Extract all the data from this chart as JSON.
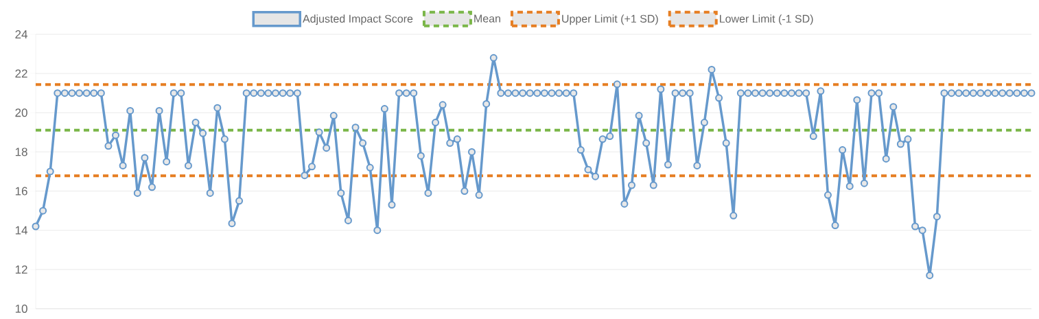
{
  "chart_data": {
    "type": "line",
    "categories": [
      null,
      null,
      null,
      null,
      null,
      null,
      null,
      null,
      null,
      null,
      null,
      null,
      null,
      null,
      null,
      null,
      null,
      null,
      null,
      null,
      null,
      null,
      null,
      null,
      null,
      null,
      null,
      null,
      null,
      null,
      null,
      null,
      null,
      null,
      null,
      null,
      null,
      null,
      null,
      null,
      null,
      null,
      null,
      null,
      null,
      null,
      null,
      null,
      null,
      null,
      null,
      null,
      null,
      null,
      null,
      null,
      null,
      null,
      null,
      null,
      null,
      null,
      null,
      null,
      null,
      null,
      null,
      null,
      null,
      null,
      null,
      null,
      null,
      null,
      null,
      null,
      null,
      null,
      null,
      null,
      null,
      null,
      null,
      null,
      null,
      null,
      null,
      null,
      null,
      null,
      null,
      null,
      null,
      null,
      null,
      null,
      null,
      null,
      null,
      null,
      null,
      null,
      null,
      null,
      null,
      null,
      null,
      null,
      null,
      null,
      null,
      null,
      null,
      null,
      null,
      null,
      null,
      null,
      null,
      null,
      null,
      null,
      null,
      null,
      null,
      null,
      null,
      null,
      null,
      null,
      null,
      null,
      null,
      null,
      null,
      null,
      null,
      null
    ],
    "series": [
      {
        "name": "Adjusted Impact Score",
        "color": "#6699cc",
        "values": [
          14.2,
          15.0,
          17.0,
          21.0,
          21.0,
          21.0,
          21.0,
          21.0,
          21.0,
          21.0,
          18.3,
          18.85,
          17.3,
          20.1,
          15.9,
          17.7,
          16.2,
          20.1,
          17.5,
          21.0,
          21.0,
          17.3,
          19.5,
          18.95,
          15.9,
          20.25,
          18.65,
          14.35,
          15.5,
          21.0,
          21.0,
          21.0,
          21.0,
          21.0,
          21.0,
          21.0,
          21.0,
          16.8,
          17.25,
          19.0,
          18.2,
          19.85,
          15.9,
          14.5,
          19.25,
          18.45,
          17.2,
          14.0,
          20.2,
          15.3,
          21.0,
          21.0,
          21.0,
          17.8,
          15.9,
          19.5,
          20.4,
          18.45,
          18.65,
          16.0,
          18.0,
          15.8,
          20.45,
          22.8,
          21.0,
          21.0,
          21.0,
          21.0,
          21.0,
          21.0,
          21.0,
          21.0,
          21.0,
          21.0,
          21.0,
          18.1,
          17.1,
          16.75,
          18.65,
          18.8,
          21.45,
          15.35,
          16.3,
          19.85,
          18.45,
          16.3,
          21.2,
          17.35,
          21.0,
          21.0,
          21.0,
          17.3,
          19.5,
          22.2,
          20.75,
          18.45,
          14.75,
          21.0,
          21.0,
          21.0,
          21.0,
          21.0,
          21.0,
          21.0,
          21.0,
          21.0,
          21.0,
          18.8,
          21.1,
          15.8,
          14.25,
          18.1,
          16.25,
          20.65,
          16.4,
          21.0,
          21.0,
          17.65,
          20.3,
          18.4,
          18.65,
          14.2,
          14.0,
          11.7,
          14.7,
          21.0,
          21.0,
          21.0,
          21.0,
          21.0,
          21.0,
          21.0,
          21.0,
          21.0,
          21.0,
          21.0,
          21.0,
          21.0
        ]
      }
    ],
    "ref_lines": [
      {
        "axis": "y",
        "value": 19.11,
        "label": "Mean",
        "color": "#7ab648",
        "line_style": "dashed"
      },
      {
        "axis": "y",
        "value": 21.44,
        "label": "Upper Limit (+1 SD)",
        "color": "#e67e22",
        "line_style": "dashed"
      },
      {
        "axis": "y",
        "value": 16.78,
        "label": "Lower Limit (-1 SD)",
        "color": "#e67e22",
        "line_style": "dashed"
      }
    ],
    "ylim": [
      10,
      24
    ],
    "yticks": [
      10,
      12,
      14,
      16,
      18,
      20,
      22,
      24
    ],
    "grid": "y",
    "legend": "top",
    "marker": "circle",
    "line_style": "solid"
  }
}
